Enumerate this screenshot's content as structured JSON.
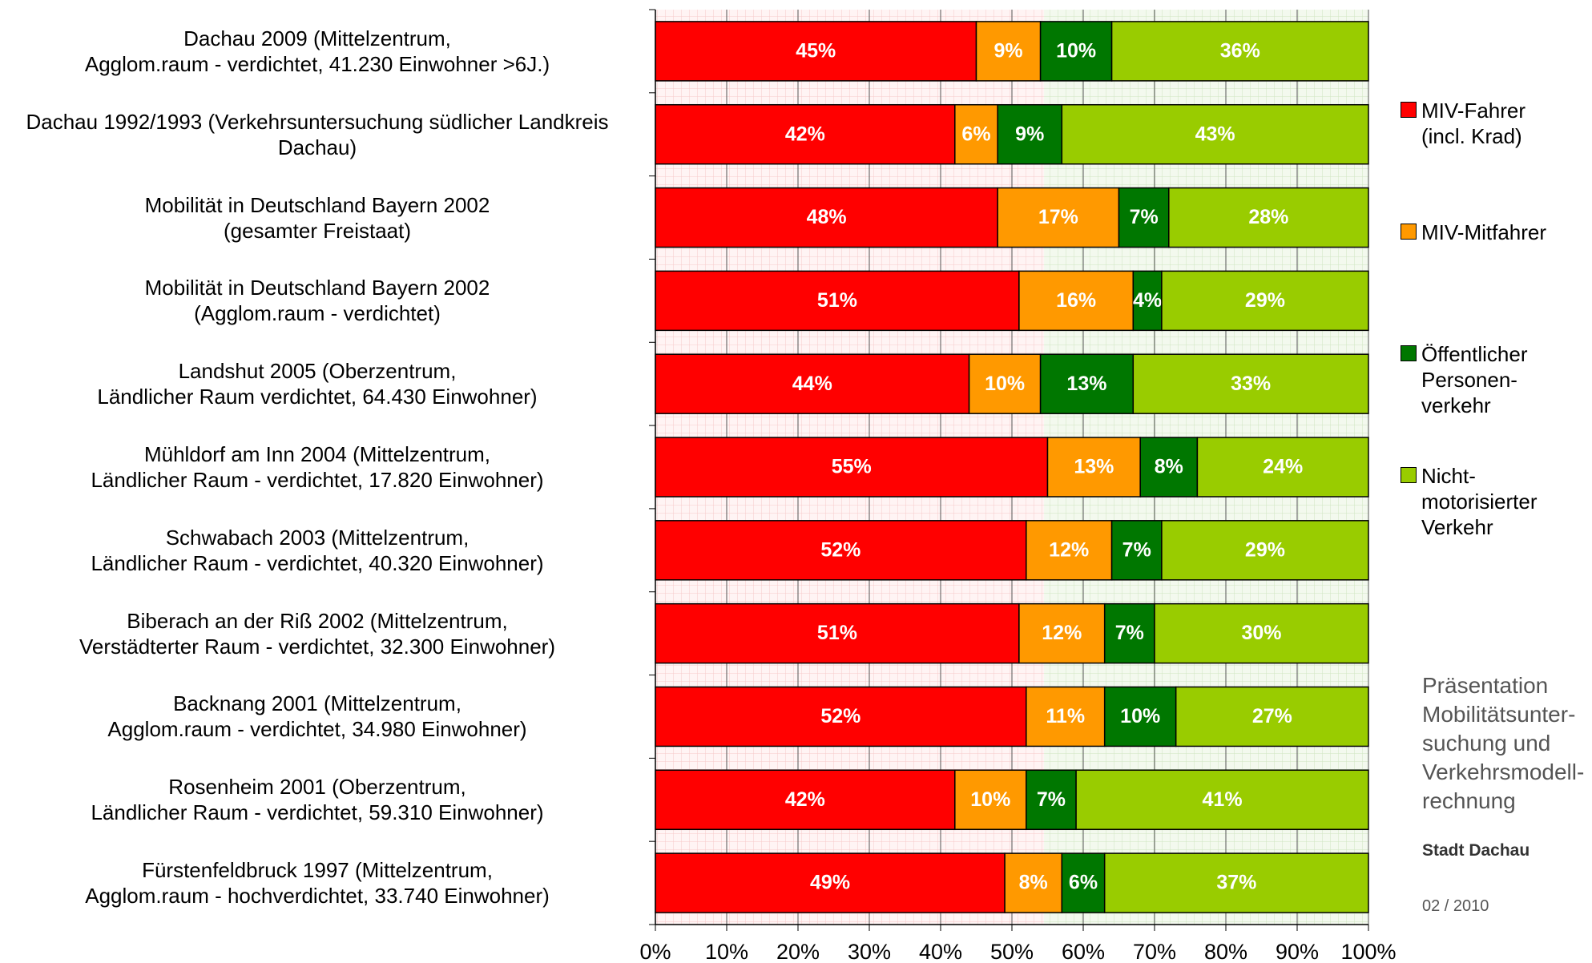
{
  "chart_data": {
    "type": "stacked-barh",
    "categories": [
      "Dachau 2009 (Mittelzentrum,\nAgglom.raum - verdichtet, 41.230 Einwohner >6J.)",
      "Dachau 1992/1993 (Verkehrsuntersuchung südlicher Landkreis\nDachau)",
      "Mobilität in Deutschland Bayern 2002\n(gesamter Freistaat)",
      "Mobilität in Deutschland Bayern 2002\n(Agglom.raum - verdichtet)",
      "Landshut 2005 (Oberzentrum,\nLändlicher Raum verdichtet, 64.430 Einwohner)",
      "Mühldorf am Inn 2004 (Mittelzentrum,\nLändlicher Raum - verdichtet, 17.820 Einwohner)",
      "Schwabach 2003 (Mittelzentrum,\nLändlicher Raum - verdichtet, 40.320 Einwohner)",
      "Biberach an der Riß 2002 (Mittelzentrum,\nVerstädterter Raum - verdichtet, 32.300 Einwohner)",
      "Backnang 2001 (Mittelzentrum,\nAgglom.raum - verdichtet, 34.980 Einwohner)",
      "Rosenheim 2001 (Oberzentrum,\nLändlicher Raum - verdichtet, 59.310 Einwohner)",
      "Fürstenfeldbruck 1997 (Mittelzentrum,\nAgglom.raum - hochverdichtet, 33.740 Einwohner)"
    ],
    "series": [
      {
        "name": "MIV-Fahrer (incl. Krad)",
        "color": "#ff0000",
        "values": [
          45,
          42,
          48,
          51,
          44,
          55,
          52,
          51,
          52,
          42,
          49
        ],
        "value_labels": [
          "45%",
          "42%",
          "48%",
          "51%",
          "44%",
          "55%",
          "52%",
          "51%",
          "52%",
          "42%",
          "49%"
        ]
      },
      {
        "name": "MIV-Mitfahrer",
        "color": "#ff9900",
        "values": [
          9,
          6,
          17,
          16,
          10,
          13,
          12,
          12,
          11,
          10,
          8
        ],
        "value_labels": [
          "9%",
          "6%",
          "17%",
          "16%",
          "10%",
          "13%",
          "12%",
          "12%",
          "11%",
          "10%",
          "8%"
        ]
      },
      {
        "name": "Öffentlicher Personen-verkehr",
        "color": "#007700",
        "values": [
          10,
          9,
          7,
          4,
          13,
          8,
          7,
          7,
          10,
          7,
          6
        ],
        "value_labels": [
          "10%",
          "9%",
          "7%",
          "4%",
          "13%",
          "8%",
          "7%",
          "7%",
          "10%",
          "7%",
          "6%"
        ]
      },
      {
        "name": "Nicht-motorisierter Verkehr",
        "color": "#99cc00",
        "values": [
          36,
          43,
          28,
          29,
          33,
          24,
          29,
          30,
          27,
          41,
          37
        ],
        "value_labels": [
          "36%",
          "43%",
          "28%",
          "29%",
          "33%",
          "24%",
          "29%",
          "30%",
          "27%",
          "41%",
          "37%"
        ]
      }
    ],
    "xlim": [
      0,
      100
    ],
    "xticks": [
      {
        "value": 0,
        "label": "0%"
      },
      {
        "value": 10,
        "label": "10%"
      },
      {
        "value": 20,
        "label": "20%"
      },
      {
        "value": 30,
        "label": "30%"
      },
      {
        "value": 40,
        "label": "40%"
      },
      {
        "value": 50,
        "label": "50%"
      },
      {
        "value": 60,
        "label": "60%"
      },
      {
        "value": 70,
        "label": "70%"
      },
      {
        "value": 80,
        "label": "80%"
      },
      {
        "value": 90,
        "label": "90%"
      },
      {
        "value": 100,
        "label": "100%"
      }
    ],
    "grid": true,
    "legend": "right",
    "annotations": [
      "Präsentation\nMobilitätsunter-\nsuchung und\nVerkehrsmodell-\nrechnung",
      "Stadt Dachau",
      "02 / 2010"
    ]
  }
}
